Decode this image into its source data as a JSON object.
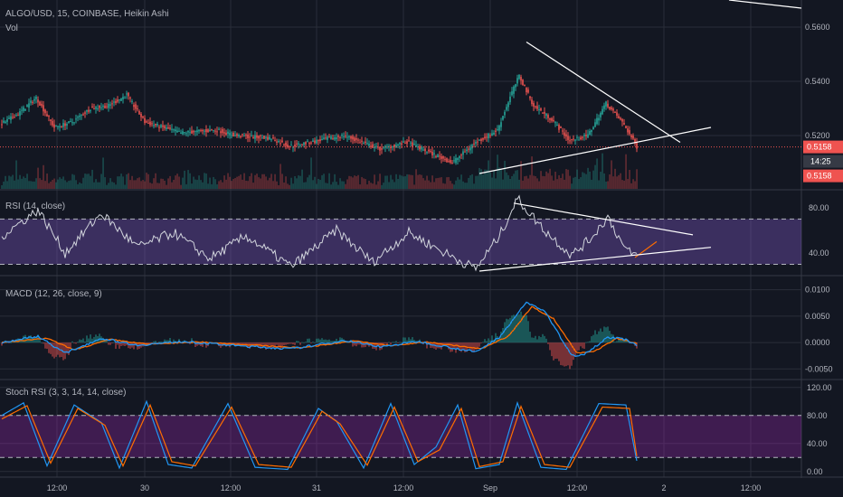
{
  "symbol_title": "ALGO/USD, 15, COINBASE, Heikin Ashi",
  "volume_label": "Vol",
  "colors": {
    "background": "#131722",
    "grid": "#2a2e39",
    "bull": "#26a69a",
    "bear": "#ef5350",
    "price_line": "#ef5350",
    "rsi_band": "#7e57c2",
    "stoch_band": "#9c27b0",
    "macd": "#2196f3",
    "signal": "#ff6d00",
    "trendline": "#ffffff"
  },
  "chart_data": [
    {
      "type": "candlestick",
      "name": "ALGO/USD Heikin Ashi",
      "ylim": [
        0.5,
        0.57
      ],
      "y_ticks": [
        "0.5600",
        "0.5400",
        "0.5200"
      ],
      "last_price": "0.5158",
      "countdown": "14:25",
      "volume_price_tag": "0.5158",
      "x_ticks": [
        "12:00",
        "30",
        "12:00",
        "31",
        "12:00",
        "Sep",
        "12:00",
        "2",
        "12:00"
      ],
      "key_points": [
        {
          "t": 0,
          "y": 0.524
        },
        {
          "t": 10,
          "y": 0.528
        },
        {
          "t": 20,
          "y": 0.534
        },
        {
          "t": 30,
          "y": 0.523
        },
        {
          "t": 40,
          "y": 0.525
        },
        {
          "t": 50,
          "y": 0.53
        },
        {
          "t": 60,
          "y": 0.531
        },
        {
          "t": 70,
          "y": 0.535
        },
        {
          "t": 80,
          "y": 0.525
        },
        {
          "t": 100,
          "y": 0.521
        },
        {
          "t": 120,
          "y": 0.522
        },
        {
          "t": 130,
          "y": 0.52
        },
        {
          "t": 150,
          "y": 0.519
        },
        {
          "t": 160,
          "y": 0.516
        },
        {
          "t": 175,
          "y": 0.518
        },
        {
          "t": 190,
          "y": 0.52
        },
        {
          "t": 210,
          "y": 0.515
        },
        {
          "t": 225,
          "y": 0.5175
        },
        {
          "t": 240,
          "y": 0.513
        },
        {
          "t": 250,
          "y": 0.51
        },
        {
          "t": 262,
          "y": 0.517
        },
        {
          "t": 275,
          "y": 0.522
        },
        {
          "t": 283,
          "y": 0.536
        },
        {
          "t": 287,
          "y": 0.542
        },
        {
          "t": 295,
          "y": 0.531
        },
        {
          "t": 305,
          "y": 0.526
        },
        {
          "t": 315,
          "y": 0.518
        },
        {
          "t": 325,
          "y": 0.52
        },
        {
          "t": 335,
          "y": 0.532
        },
        {
          "t": 345,
          "y": 0.524
        },
        {
          "t": 352,
          "y": 0.5158
        }
      ],
      "trendlines": [
        {
          "from": {
            "t": 290,
            "y": 0.5545
          },
          "to": {
            "t": 375,
            "y": 0.5175
          }
        },
        {
          "from": {
            "t": 264,
            "y": 0.506
          },
          "to": {
            "t": 392,
            "y": 0.523
          }
        }
      ]
    },
    {
      "type": "line",
      "title": "RSI (14, close)",
      "ylim": [
        20,
        95
      ],
      "y_ticks": [
        "80.00",
        "40.00"
      ],
      "bands": [
        30,
        70
      ],
      "key_points": [
        {
          "t": 0,
          "y": 55
        },
        {
          "t": 20,
          "y": 78
        },
        {
          "t": 35,
          "y": 40
        },
        {
          "t": 55,
          "y": 75
        },
        {
          "t": 75,
          "y": 45
        },
        {
          "t": 95,
          "y": 58
        },
        {
          "t": 115,
          "y": 35
        },
        {
          "t": 135,
          "y": 55
        },
        {
          "t": 160,
          "y": 28
        },
        {
          "t": 185,
          "y": 60
        },
        {
          "t": 205,
          "y": 32
        },
        {
          "t": 225,
          "y": 58
        },
        {
          "t": 245,
          "y": 40
        },
        {
          "t": 262,
          "y": 26
        },
        {
          "t": 275,
          "y": 55
        },
        {
          "t": 285,
          "y": 88
        },
        {
          "t": 300,
          "y": 60
        },
        {
          "t": 315,
          "y": 38
        },
        {
          "t": 325,
          "y": 52
        },
        {
          "t": 335,
          "y": 72
        },
        {
          "t": 345,
          "y": 42
        },
        {
          "t": 352,
          "y": 37
        }
      ],
      "orange_segment": [
        {
          "t": 350,
          "y": 36
        },
        {
          "t": 362,
          "y": 50
        }
      ],
      "trendlines": [
        {
          "from": {
            "t": 283,
            "y": 84
          },
          "to": {
            "t": 382,
            "y": 56
          }
        },
        {
          "from": {
            "t": 264,
            "y": 24
          },
          "to": {
            "t": 392,
            "y": 45
          }
        }
      ]
    },
    {
      "type": "line",
      "title": "MACD (12, 26, close, 9)",
      "ylim": [
        -0.007,
        0.0125
      ],
      "y_ticks": [
        "0.0100",
        "0.0050",
        "0.0000",
        "-0.0050"
      ],
      "series": [
        {
          "name": "MACD",
          "key_points": [
            {
              "t": 0,
              "y": 0.0
            },
            {
              "t": 20,
              "y": 0.0012
            },
            {
              "t": 35,
              "y": -0.002
            },
            {
              "t": 55,
              "y": 0.0008
            },
            {
              "t": 75,
              "y": -0.0005
            },
            {
              "t": 100,
              "y": 0.0002
            },
            {
              "t": 130,
              "y": -0.0006
            },
            {
              "t": 160,
              "y": -0.0012
            },
            {
              "t": 190,
              "y": 0.0004
            },
            {
              "t": 210,
              "y": -0.0008
            },
            {
              "t": 230,
              "y": 0.0002
            },
            {
              "t": 262,
              "y": -0.0018
            },
            {
              "t": 275,
              "y": 0.001
            },
            {
              "t": 290,
              "y": 0.0076
            },
            {
              "t": 300,
              "y": 0.006
            },
            {
              "t": 315,
              "y": -0.0025
            },
            {
              "t": 322,
              "y": -0.0022
            },
            {
              "t": 335,
              "y": 0.001
            },
            {
              "t": 345,
              "y": 0.0006
            },
            {
              "t": 352,
              "y": -0.0008
            }
          ]
        },
        {
          "name": "Signal",
          "key_points": [
            {
              "t": 0,
              "y": 0.0
            },
            {
              "t": 25,
              "y": 0.0008
            },
            {
              "t": 40,
              "y": -0.0014
            },
            {
              "t": 60,
              "y": 0.0006
            },
            {
              "t": 80,
              "y": -0.0003
            },
            {
              "t": 110,
              "y": 0.0001
            },
            {
              "t": 140,
              "y": -0.0005
            },
            {
              "t": 165,
              "y": -0.001
            },
            {
              "t": 195,
              "y": 0.0003
            },
            {
              "t": 215,
              "y": -0.0006
            },
            {
              "t": 235,
              "y": 0.0001
            },
            {
              "t": 265,
              "y": -0.0012
            },
            {
              "t": 280,
              "y": 0.0012
            },
            {
              "t": 293,
              "y": 0.0068
            },
            {
              "t": 305,
              "y": 0.0045
            },
            {
              "t": 318,
              "y": -0.002
            },
            {
              "t": 328,
              "y": -0.0016
            },
            {
              "t": 340,
              "y": 0.0008
            },
            {
              "t": 352,
              "y": -0.0003
            }
          ]
        }
      ]
    },
    {
      "type": "line",
      "title": "Stoch RSI (3, 3, 14, 14, close)",
      "ylim": [
        -8,
        130
      ],
      "y_ticks": [
        "120.00",
        "80.00",
        "40.00",
        "0.00"
      ],
      "bands": [
        20,
        80
      ],
      "series": [
        {
          "name": "K",
          "key_points": [
            {
              "t": 0,
              "y": 80
            },
            {
              "t": 12,
              "y": 98
            },
            {
              "t": 25,
              "y": 8
            },
            {
              "t": 40,
              "y": 95
            },
            {
              "t": 55,
              "y": 70
            },
            {
              "t": 65,
              "y": 5
            },
            {
              "t": 80,
              "y": 100
            },
            {
              "t": 92,
              "y": 10
            },
            {
              "t": 105,
              "y": 5
            },
            {
              "t": 125,
              "y": 97
            },
            {
              "t": 140,
              "y": 6
            },
            {
              "t": 158,
              "y": 3
            },
            {
              "t": 175,
              "y": 90
            },
            {
              "t": 185,
              "y": 72
            },
            {
              "t": 200,
              "y": 5
            },
            {
              "t": 215,
              "y": 97
            },
            {
              "t": 228,
              "y": 10
            },
            {
              "t": 240,
              "y": 35
            },
            {
              "t": 252,
              "y": 95
            },
            {
              "t": 262,
              "y": 4
            },
            {
              "t": 275,
              "y": 10
            },
            {
              "t": 285,
              "y": 98
            },
            {
              "t": 298,
              "y": 6
            },
            {
              "t": 312,
              "y": 3
            },
            {
              "t": 330,
              "y": 97
            },
            {
              "t": 345,
              "y": 95
            },
            {
              "t": 352,
              "y": 2
            }
          ]
        },
        {
          "name": "D",
          "key_points": [
            {
              "t": 0,
              "y": 75
            },
            {
              "t": 14,
              "y": 94
            },
            {
              "t": 27,
              "y": 12
            },
            {
              "t": 42,
              "y": 90
            },
            {
              "t": 57,
              "y": 66
            },
            {
              "t": 67,
              "y": 8
            },
            {
              "t": 82,
              "y": 95
            },
            {
              "t": 94,
              "y": 14
            },
            {
              "t": 107,
              "y": 8
            },
            {
              "t": 127,
              "y": 92
            },
            {
              "t": 142,
              "y": 10
            },
            {
              "t": 160,
              "y": 6
            },
            {
              "t": 177,
              "y": 86
            },
            {
              "t": 187,
              "y": 68
            },
            {
              "t": 202,
              "y": 9
            },
            {
              "t": 217,
              "y": 92
            },
            {
              "t": 230,
              "y": 14
            },
            {
              "t": 242,
              "y": 31
            },
            {
              "t": 254,
              "y": 90
            },
            {
              "t": 264,
              "y": 7
            },
            {
              "t": 277,
              "y": 14
            },
            {
              "t": 287,
              "y": 93
            },
            {
              "t": 300,
              "y": 10
            },
            {
              "t": 314,
              "y": 6
            },
            {
              "t": 332,
              "y": 92
            },
            {
              "t": 347,
              "y": 90
            },
            {
              "t": 352,
              "y": 5
            }
          ]
        }
      ]
    }
  ]
}
